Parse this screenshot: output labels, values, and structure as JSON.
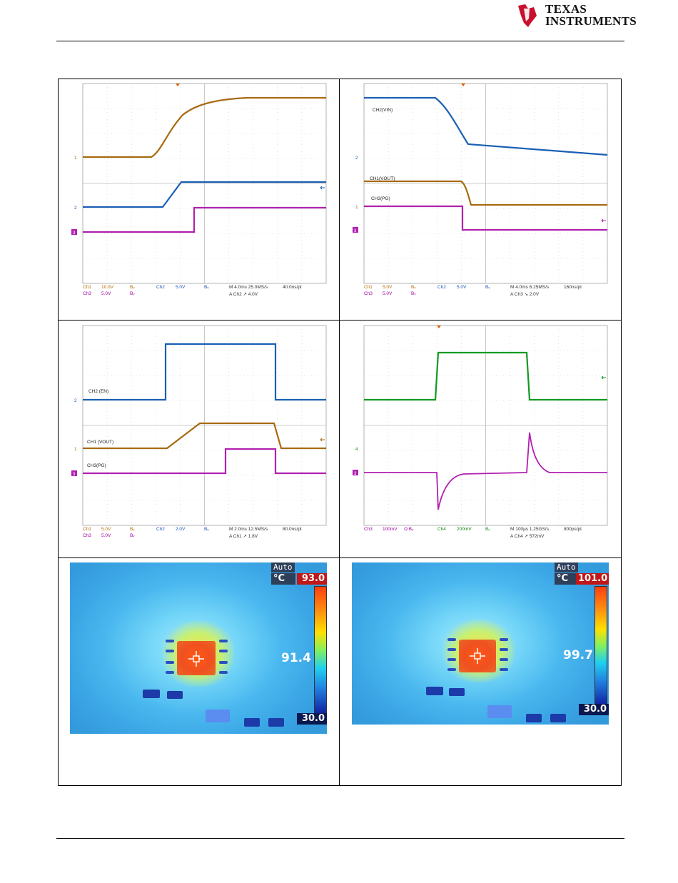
{
  "header": {
    "company_line1": "Texas",
    "company_line2": "Instruments"
  },
  "colors": {
    "ch1": "#a86a10",
    "ch2": "#1a5fb4",
    "ch3": "#b020b0",
    "ch4": "#109a20"
  },
  "scope_plots": [
    {
      "trace_labels": [],
      "legend": {
        "row1": [
          "Ch1",
          "10.0V",
          "Bᵥ",
          "Ch2",
          "5.0V",
          "Bᵥ",
          "M 4.0ms 25.0MS/s",
          "40.0ns/pt"
        ],
        "row2": [
          "Ch3",
          "5.0V",
          "Bᵥ",
          "A Ch2 ↗ 4.0V"
        ]
      },
      "ref_markers": [
        "1",
        "2",
        "3"
      ]
    },
    {
      "trace_labels": [
        "CH2(VIN)",
        "CH1(VOUT)",
        "CH3(PG)"
      ],
      "legend": {
        "row1": [
          "Ch1",
          "5.0V",
          "Bᵥ",
          "Ch2",
          "5.0V",
          "Bᵥ",
          "M 4.0ms 6.25MS/s",
          "160ns/pt"
        ],
        "row2": [
          "Ch3",
          "5.0V",
          "Bᵥ",
          "A Ch3 ↘ 2.0V"
        ]
      },
      "ref_markers": [
        "2",
        "1",
        "3"
      ]
    },
    {
      "trace_labels": [
        "CH2 (EN)",
        "CH1 (VOUT)",
        "CH3(PG)"
      ],
      "legend": {
        "row1": [
          "Ch1",
          "5.0V",
          "Bᵥ",
          "Ch2",
          "2.0V",
          "Bᵥ",
          "M 2.0ms 12.5MS/s",
          "80.0ns/pt"
        ],
        "row2": [
          "Ch3",
          "5.0V",
          "Bᵥ",
          "A Ch1 ↗ 1.8V"
        ]
      },
      "ref_markers": [
        "2",
        "1",
        "3"
      ]
    },
    {
      "trace_labels": [],
      "legend": {
        "row1": [
          "Ch3",
          "100mV",
          "Ω Bᵥ",
          "Ch4",
          "200mV",
          "Bᵥ",
          "M 100µs 1.25GS/s",
          "800ps/pt"
        ],
        "row2": [
          "A Ch4 ↗ 572mV"
        ]
      },
      "ref_markers": [
        "4",
        "3"
      ]
    }
  ],
  "thermal_images": [
    {
      "mode": "Auto",
      "unit": "°C",
      "max": "93.0",
      "min": "30.0",
      "spot": "91.4"
    },
    {
      "mode": "Auto",
      "unit": "°C",
      "max": "101.0",
      "min": "30.0",
      "spot": "99.7"
    }
  ]
}
